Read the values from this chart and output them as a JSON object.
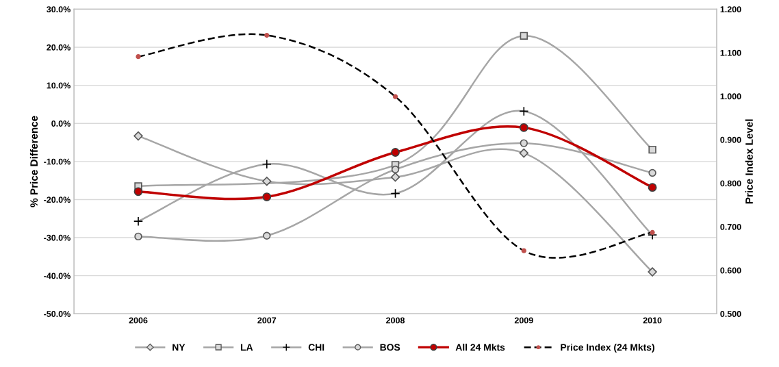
{
  "chart_data": {
    "type": "line",
    "categories": [
      "2006",
      "2007",
      "2008",
      "2009",
      "2010"
    ],
    "ylabel": "% Price Difference",
    "y2label": "Price Index Level",
    "ylim": [
      -0.5,
      0.3
    ],
    "yticks": [
      {
        "value": -0.5,
        "label": "-50.0%"
      },
      {
        "value": -0.4,
        "label": "-40.0%"
      },
      {
        "value": -0.3,
        "label": "-30.0%"
      },
      {
        "value": -0.2,
        "label": "-20.0%"
      },
      {
        "value": -0.1,
        "label": "-10.0%"
      },
      {
        "value": 0,
        "label": "0.0%"
      },
      {
        "value": 0.1,
        "label": "10.0%"
      },
      {
        "value": 0.2,
        "label": "20.0%"
      },
      {
        "value": 0.3,
        "label": "30.0%"
      }
    ],
    "y2lim": [
      0.5,
      1.2
    ],
    "y2ticks": [
      {
        "value": 0.5,
        "label": "0.500"
      },
      {
        "value": 0.6,
        "label": "0.600"
      },
      {
        "value": 0.7,
        "label": "0.700"
      },
      {
        "value": 0.8,
        "label": "0.800"
      },
      {
        "value": 0.9,
        "label": "0.900"
      },
      {
        "value": 1.0,
        "label": "1.000"
      },
      {
        "value": 1.1,
        "label": "1.100"
      },
      {
        "value": 1.2,
        "label": "1.200"
      }
    ],
    "grid": "y",
    "legend": "bottom",
    "series": [
      {
        "name": "NY",
        "color": "#a6a6a6",
        "marker": "diamond",
        "line_style": "solid",
        "values": [
          -0.033,
          -0.152,
          -0.141,
          -0.078,
          -0.39
        ]
      },
      {
        "name": "LA",
        "color": "#a6a6a6",
        "marker": "square",
        "line_style": "solid",
        "values": [
          -0.165,
          null,
          -0.109,
          0.23,
          -0.069
        ]
      },
      {
        "name": "CHI",
        "color": "#a6a6a6",
        "marker": "cross",
        "line_style": "solid",
        "values": [
          -0.257,
          -0.107,
          -0.184,
          0.032,
          -0.293
        ]
      },
      {
        "name": "BOS",
        "color": "#a6a6a6",
        "marker": "circle",
        "line_style": "solid",
        "values": [
          -0.297,
          -0.295,
          -0.121,
          -0.052,
          -0.13
        ]
      },
      {
        "name": "All 24 Mkts",
        "color": "#c00000",
        "marker": "circle",
        "line_style": "solid",
        "values": [
          -0.179,
          -0.193,
          -0.076,
          -0.011,
          -0.168
        ]
      },
      {
        "name": "Price Index (24 Mkts)",
        "color": "#000000",
        "marker": "circle",
        "line_style": "dashed",
        "axis": "y2",
        "values": [
          1.091,
          1.14,
          0.999,
          0.645,
          0.687
        ]
      }
    ]
  }
}
